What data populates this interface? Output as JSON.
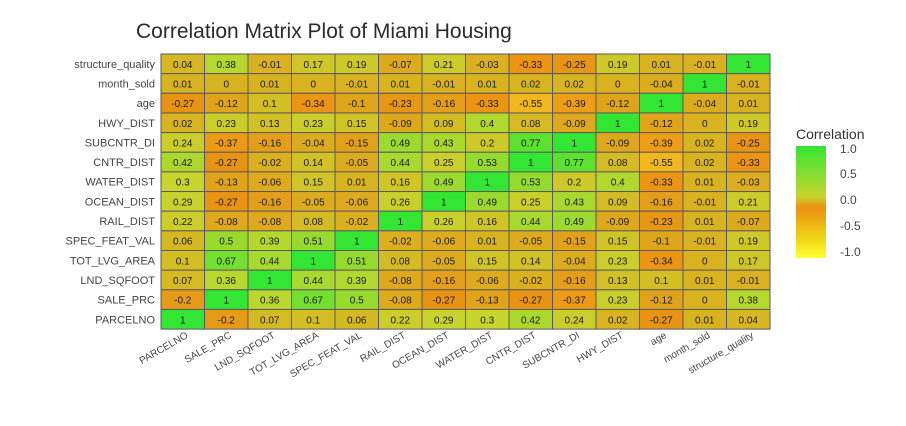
{
  "chart_data": {
    "type": "heatmap",
    "title": "Correlation Matrix Plot of Miami Housing",
    "x_labels": [
      "PARCELNO",
      "SALE_PRC",
      "LND_SQFOOT",
      "TOT_LVG_AREA",
      "SPEC_FEAT_VAL",
      "RAIL_DIST",
      "OCEAN_DIST",
      "WATER_DIST",
      "CNTR_DIST",
      "SUBCNTR_DI",
      "HWY_DIST",
      "age",
      "month_sold",
      "structure_quality"
    ],
    "y_labels": [
      "structure_quality",
      "month_sold",
      "age",
      "HWY_DIST",
      "SUBCNTR_DI",
      "CNTR_DIST",
      "WATER_DIST",
      "OCEAN_DIST",
      "RAIL_DIST",
      "SPEC_FEAT_VAL",
      "TOT_LVG_AREA",
      "LND_SQFOOT",
      "SALE_PRC",
      "PARCELNO"
    ],
    "values": [
      [
        0.04,
        0.38,
        -0.01,
        0.17,
        0.19,
        -0.07,
        0.21,
        -0.03,
        -0.33,
        -0.25,
        0.19,
        0.01,
        -0.01,
        1
      ],
      [
        0.01,
        0,
        0.01,
        0,
        -0.01,
        0.01,
        -0.01,
        0.01,
        0.02,
        0.02,
        0,
        -0.04,
        1,
        -0.01
      ],
      [
        -0.27,
        -0.12,
        0.1,
        -0.34,
        -0.1,
        -0.23,
        -0.16,
        -0.33,
        -0.55,
        -0.39,
        -0.12,
        1,
        -0.04,
        0.01
      ],
      [
        0.02,
        0.23,
        0.13,
        0.23,
        0.15,
        -0.09,
        0.09,
        0.4,
        0.08,
        -0.09,
        1,
        -0.12,
        0,
        0.19
      ],
      [
        0.24,
        -0.37,
        -0.16,
        -0.04,
        -0.15,
        0.49,
        0.43,
        0.2,
        0.77,
        1,
        -0.09,
        -0.39,
        0.02,
        -0.25
      ],
      [
        0.42,
        -0.27,
        -0.02,
        0.14,
        -0.05,
        0.44,
        0.25,
        0.53,
        1,
        0.77,
        0.08,
        -0.55,
        0.02,
        -0.33
      ],
      [
        0.3,
        -0.13,
        -0.06,
        0.15,
        0.01,
        0.16,
        0.49,
        1,
        0.53,
        0.2,
        0.4,
        -0.33,
        0.01,
        -0.03
      ],
      [
        0.29,
        -0.27,
        -0.16,
        -0.05,
        -0.06,
        0.26,
        1,
        0.49,
        0.25,
        0.43,
        0.09,
        -0.16,
        -0.01,
        0.21
      ],
      [
        0.22,
        -0.08,
        -0.08,
        0.08,
        -0.02,
        1,
        0.26,
        0.16,
        0.44,
        0.49,
        -0.09,
        -0.23,
        0.01,
        -0.07
      ],
      [
        0.06,
        0.5,
        0.39,
        0.51,
        1,
        -0.02,
        -0.06,
        0.01,
        -0.05,
        -0.15,
        0.15,
        -0.1,
        -0.01,
        0.19
      ],
      [
        0.1,
        0.67,
        0.44,
        1,
        0.51,
        0.08,
        -0.05,
        0.15,
        0.14,
        -0.04,
        0.23,
        -0.34,
        0,
        0.17
      ],
      [
        0.07,
        0.36,
        1,
        0.44,
        0.39,
        -0.08,
        -0.16,
        -0.06,
        -0.02,
        -0.16,
        0.13,
        0.1,
        0.01,
        -0.01
      ],
      [
        -0.2,
        1,
        0.36,
        0.67,
        0.5,
        -0.08,
        -0.27,
        -0.13,
        -0.27,
        -0.37,
        0.23,
        -0.12,
        0,
        0.38
      ],
      [
        1,
        -0.2,
        0.07,
        0.1,
        0.06,
        0.22,
        0.29,
        0.3,
        0.42,
        0.24,
        0.02,
        -0.27,
        0.01,
        0.04
      ]
    ],
    "legend": {
      "title": "Correlation",
      "ticks": [
        "1.0",
        "0.5",
        "0.0",
        "-0.5",
        "-1.0"
      ],
      "placement": "right"
    },
    "colors": {
      "high": "#33e633",
      "mid_high": "#c7d52d",
      "mid": "#eb8f13",
      "low": "#ffff33",
      "cell_border": "#5a5a5a"
    }
  }
}
